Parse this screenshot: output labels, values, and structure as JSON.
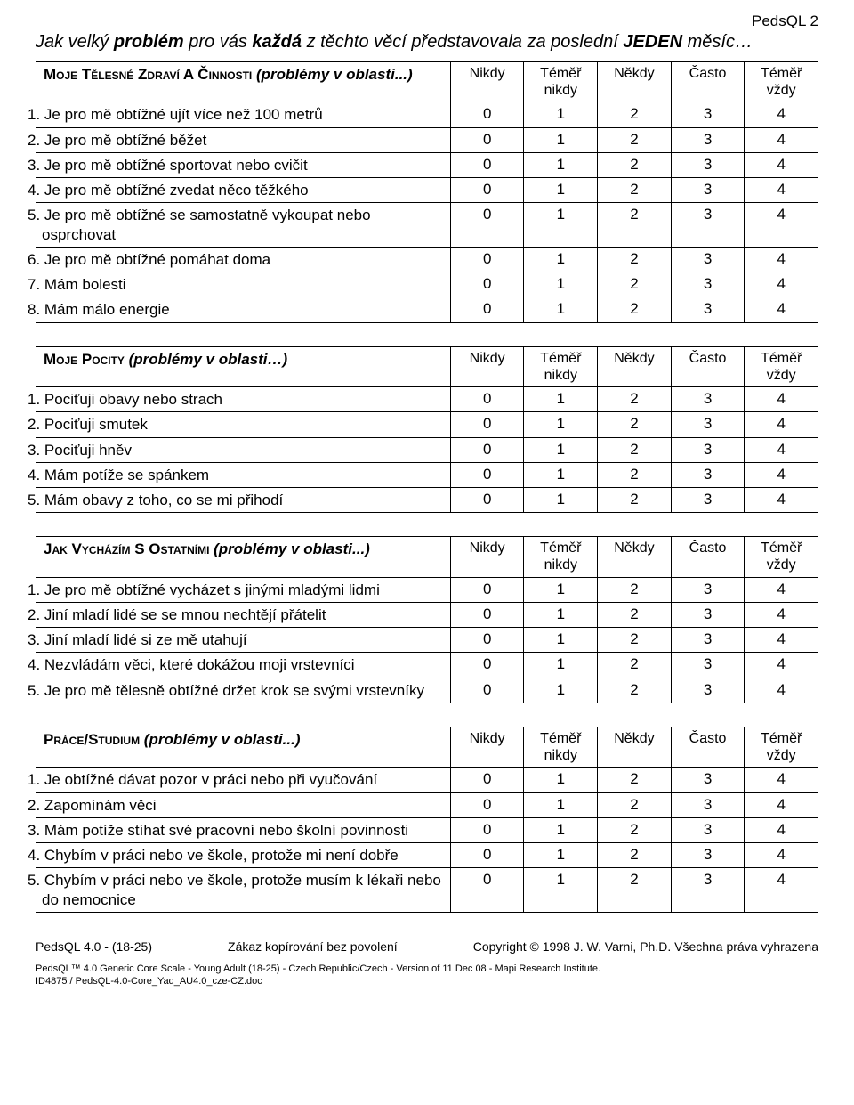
{
  "header_right": "PedsQL 2",
  "prompt_pre": "Jak velký ",
  "prompt_b1": "problém",
  "prompt_mid": " pro vás ",
  "prompt_b2": "každá",
  "prompt_mid2": " z těchto věcí představovala za poslední ",
  "prompt_b3": "JEDEN",
  "prompt_mid3": " měsíc…",
  "scale_headers": [
    "Nikdy",
    "Téměř nikdy",
    "Někdy",
    "Často",
    "Téměř vždy"
  ],
  "scale_values": [
    "0",
    "1",
    "2",
    "3",
    "4"
  ],
  "sections": [
    {
      "title_caps": "Moje Tělesné Zdraví A Činnosti",
      "title_paren": " (problémy v oblasti...)",
      "rows": [
        "1.  Je pro mě obtížné ujít více než 100 metrů",
        "2.  Je pro mě obtížné běžet",
        "3.  Je pro mě obtížné sportovat nebo cvičit",
        "4.  Je pro mě obtížné zvedat něco těžkého",
        "5.  Je pro mě obtížné se samostatně vykoupat nebo osprchovat",
        "6.  Je pro mě obtížné pomáhat doma",
        "7.  Mám bolesti",
        "8.  Mám málo energie"
      ]
    },
    {
      "title_caps": "Moje Pocity",
      "title_paren": " (problémy v oblasti…)",
      "rows": [
        "1.  Pociťuji obavy nebo strach",
        "2.  Pociťuji smutek",
        "3.  Pociťuji hněv",
        "4.  Mám potíže se spánkem",
        "5.  Mám obavy z toho, co se mi přihodí"
      ]
    },
    {
      "title_caps": "Jak Vycházím S Ostatními",
      "title_paren": " (problémy v oblasti...)",
      "rows": [
        "1.  Je pro mě obtížné vycházet s jinými mladými lidmi",
        "2.  Jiní mladí lidé se se mnou nechtějí přátelit",
        "3.  Jiní mladí lidé si ze mě utahují",
        "4.  Nezvládám věci, které dokážou moji vrstevníci",
        "5.  Je pro mě tělesně obtížné držet krok se svými vrstevníky"
      ]
    },
    {
      "title_caps": "Práce/Studium",
      "title_paren": " (problémy v oblasti...)",
      "rows": [
        "1.  Je obtížné dávat pozor v práci nebo při vyučování",
        "2.  Zapomínám věci",
        "3.  Mám potíže stíhat své pracovní nebo školní povinnosti",
        "4.  Chybím v práci nebo ve škole, protože mi není dobře",
        "5.  Chybím v práci nebo ve škole, protože musím k lékaři nebo do nemocnice"
      ]
    }
  ],
  "footer": {
    "left": "PedsQL 4.0 - (18-25)",
    "mid": "Zákaz kopírování bez povolení",
    "right": "Copyright © 1998 J. W. Varni, Ph.D. Všechna práva vyhrazena",
    "small1": "PedsQL™ 4.0 Generic Core Scale - Young Adult (18-25) - Czech Republic/Czech - Version of 11 Dec 08 - Mapi Research Institute.",
    "small2": "ID4875 / PedsQL-4.0-Core_Yad_AU4.0_cze-CZ.doc"
  }
}
